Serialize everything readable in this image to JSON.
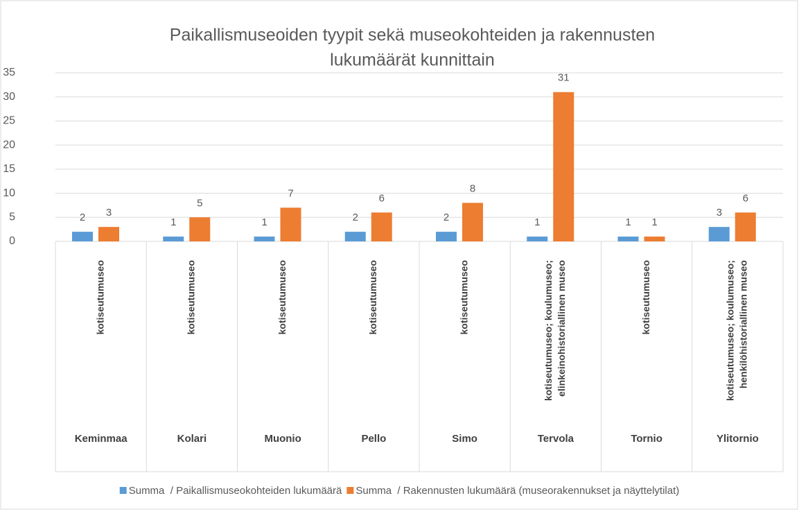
{
  "chart_data": {
    "type": "bar",
    "title": [
      "Paikallismuseoiden tyypit sekä museokohteiden ja rakennusten",
      "lukumäärät kunnittain"
    ],
    "categories": [
      "Keminmaa",
      "Kolari",
      "Muonio",
      "Pello",
      "Simo",
      "Tervola",
      "Tornio",
      "Ylitornio"
    ],
    "subcategories": [
      [
        "kotiseutumuseo"
      ],
      [
        "kotiseutumuseo"
      ],
      [
        "kotiseutumuseo"
      ],
      [
        "kotiseutumuseo"
      ],
      [
        "kotiseutumuseo"
      ],
      [
        "kotiseutumuseo; koulumuseo;",
        "elinkeinohistoriallinen museo"
      ],
      [
        "kotiseutumuseo"
      ],
      [
        "kotiseutumuseo; koulumuseo;",
        "henkilöhistoriallinen museo"
      ]
    ],
    "series": [
      {
        "name": "Summa  / Paikallismuseokohteiden lukumäärä",
        "color": "#5b9bd5",
        "values": [
          2,
          1,
          1,
          2,
          2,
          1,
          1,
          3
        ]
      },
      {
        "name": "Summa  / Rakennusten lukumäärä (museorakennukset ja näyttelytilat)",
        "color": "#ed7d31",
        "values": [
          3,
          5,
          7,
          6,
          8,
          31,
          1,
          6
        ]
      }
    ],
    "ylim": [
      0,
      35
    ],
    "yticks": [
      0,
      5,
      10,
      15,
      20,
      25,
      30,
      35
    ],
    "grid": true,
    "legend": "bottom"
  }
}
